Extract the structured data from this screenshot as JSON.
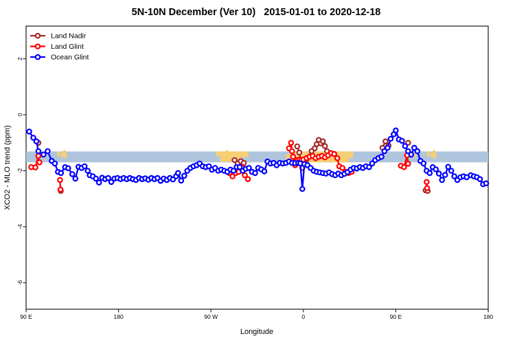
{
  "title": "5N-10N December (Ver 10)   2015-01-01 to 2020-12-18",
  "legend": {
    "items": [
      {
        "label": "Land Nadir",
        "color": "#A52A2A"
      },
      {
        "label": "Land Glint",
        "color": "#FF0000"
      },
      {
        "label": "Ocean Glint",
        "color": "#0000FF"
      }
    ]
  },
  "axes": {
    "x": {
      "label": "Longitude",
      "range_deg": [
        90,
        540
      ],
      "ticks": [
        {
          "deg": 90,
          "label": "90 E"
        },
        {
          "deg": 180,
          "label": "180"
        },
        {
          "deg": 270,
          "label": "90 W"
        },
        {
          "deg": 360,
          "label": "0"
        },
        {
          "deg": 450,
          "label": "90 E"
        },
        {
          "deg": 540,
          "label": "180"
        }
      ]
    },
    "y": {
      "label": "XCO2 - MLO trend (ppm)",
      "ticks": [
        {
          "value": 2,
          "label": "2"
        },
        {
          "value": 0,
          "label": "0"
        },
        {
          "value": -2,
          "label": "-2"
        },
        {
          "value": -4,
          "label": "-4"
        },
        {
          "value": -6,
          "label": "-6"
        }
      ]
    }
  },
  "reference_band": {
    "description": "latitude-strip land/ocean reference band",
    "top_ppm": -1.31,
    "bottom_ppm": -1.7,
    "ocean_color": "#AFC5DD",
    "land_color": "#F7CE74",
    "land_segments": [
      {
        "deg0": 100.8,
        "deg1": 103.4,
        "f0": 0.0,
        "f1": 0.55
      },
      {
        "deg0": 104.6,
        "deg1": 107.6,
        "f0": 0.12,
        "f1": 0.5
      },
      {
        "deg0": 108.2,
        "deg1": 109.8,
        "f0": 0.15,
        "f1": 0.55
      },
      {
        "deg0": 120.2,
        "deg1": 123.0,
        "f0": 0.0,
        "f1": 0.45
      },
      {
        "deg0": 124.0,
        "deg1": 125.5,
        "f0": 0.1,
        "f1": 0.5
      },
      {
        "deg0": 274.8,
        "deg1": 279.0,
        "f0": 0.0,
        "f1": 0.45
      },
      {
        "deg0": 279.0,
        "deg1": 299.0,
        "f0": 0.0,
        "f1": 0.95
      },
      {
        "deg0": 299.0,
        "deg1": 306.5,
        "f0": 0.0,
        "f1": 0.55
      },
      {
        "deg0": 343.0,
        "deg1": 346.5,
        "f0": 0.25,
        "f1": 1.0
      },
      {
        "deg0": 346.5,
        "deg1": 404.5,
        "f0": 0.0,
        "f1": 1.0
      },
      {
        "deg0": 404.5,
        "deg1": 408.5,
        "f0": 0.0,
        "f1": 0.6
      },
      {
        "deg0": 460.8,
        "deg1": 463.4,
        "f0": 0.0,
        "f1": 0.55
      },
      {
        "deg0": 464.6,
        "deg1": 467.6,
        "f0": 0.12,
        "f1": 0.5
      },
      {
        "deg0": 468.2,
        "deg1": 469.8,
        "f0": 0.15,
        "f1": 0.55
      },
      {
        "deg0": 480.2,
        "deg1": 483.0,
        "f0": 0.0,
        "f1": 0.45
      },
      {
        "deg0": 484.0,
        "deg1": 485.5,
        "f0": 0.1,
        "f1": 0.5
      }
    ],
    "island_specks_deg": [
      126.8,
      285.0,
      486.8
    ]
  },
  "chart_data": {
    "type": "line",
    "xlabel": "Longitude",
    "ylabel": "XCO2 - MLO trend (ppm)",
    "x_axis_deg_range": [
      90,
      540
    ],
    "ylim": [
      -6.9,
      3.2
    ],
    "note": "x is longitude in axis degrees: 90=90E, 180=180, 270=90W, 360=0, 450=90E, 540=180; points are [deg, ppm]",
    "series": [
      {
        "name": "Land Nadir",
        "color": "#A52A2A",
        "clusters": [
          [
            [
              102,
              -1.0
            ]
          ],
          [
            [
              123.8,
              -2.72
            ]
          ],
          [
            [
              293,
              -1.62
            ],
            [
              296,
              -1.74
            ],
            [
              299,
              -1.66
            ],
            [
              302,
              -1.72
            ]
          ],
          [
            [
              354,
              -1.13
            ],
            [
              356,
              -1.35
            ],
            [
              359,
              -1.9
            ],
            [
              363,
              -1.6
            ],
            [
              368,
              -1.3
            ],
            [
              371,
              -1.2
            ],
            [
              373,
              -1.05
            ],
            [
              375,
              -0.9
            ],
            [
              377,
              -1.02
            ],
            [
              379,
              -0.95
            ],
            [
              381,
              -1.12
            ],
            [
              383,
              -1.3
            ]
          ],
          [
            [
              437,
              -1.18
            ],
            [
              440,
              -0.95
            ],
            [
              443,
              -1.1
            ]
          ],
          [
            [
              462,
              -1.0
            ]
          ],
          [
            [
              479,
              -2.7
            ],
            [
              481,
              -2.72
            ]
          ]
        ]
      },
      {
        "name": "Land Glint",
        "color": "#FF0000",
        "clusters": [
          [
            [
              95,
              -1.87
            ],
            [
              99,
              -1.88
            ],
            [
              102,
              -1.47
            ],
            [
              103,
              -1.7
            ]
          ],
          [
            [
              123,
              -2.33
            ],
            [
              123.5,
              -2.67
            ]
          ],
          [
            [
              288,
              -2.08
            ],
            [
              291,
              -2.2
            ],
            [
              294,
              -2.08
            ],
            [
              297,
              -2.04
            ],
            [
              300,
              -1.87
            ],
            [
              303,
              -2.16
            ],
            [
              306,
              -2.3
            ]
          ],
          [
            [
              346,
              -1.2
            ],
            [
              348,
              -1.0
            ],
            [
              349,
              -1.3
            ],
            [
              350,
              -1.5
            ],
            [
              352,
              -1.8
            ],
            [
              354,
              -1.62
            ],
            [
              356,
              -1.6
            ],
            [
              358,
              -1.62
            ],
            [
              360,
              -1.6
            ],
            [
              363,
              -1.55
            ],
            [
              366,
              -1.5
            ],
            [
              369,
              -1.47
            ],
            [
              372,
              -1.55
            ],
            [
              375,
              -1.5
            ],
            [
              378,
              -1.47
            ],
            [
              381,
              -1.52
            ],
            [
              384,
              -1.45
            ],
            [
              387,
              -1.37
            ],
            [
              390,
              -1.4
            ],
            [
              393,
              -1.55
            ],
            [
              395,
              -1.84
            ],
            [
              398,
              -1.9
            ],
            [
              401,
              -2.04
            ],
            [
              404,
              -2.08
            ],
            [
              407,
              -2.04
            ]
          ],
          [
            [
              455,
              -1.82
            ],
            [
              458,
              -1.87
            ],
            [
              461,
              -1.45
            ],
            [
              462,
              -1.75
            ]
          ],
          [
            [
              480,
              -2.4
            ],
            [
              480.5,
              -2.62
            ]
          ]
        ]
      },
      {
        "name": "Ocean Glint",
        "color": "#0000FF",
        "clusters": [
          [
            [
              93,
              -0.6
            ],
            [
              97,
              -0.82
            ],
            [
              100,
              -0.95
            ],
            [
              102,
              -1.3
            ],
            [
              107,
              -1.42
            ],
            [
              111,
              -1.3
            ],
            [
              115,
              -1.65
            ],
            [
              118,
              -1.74
            ],
            [
              121,
              -2.04
            ],
            [
              124,
              -2.08
            ],
            [
              128,
              -1.87
            ],
            [
              131,
              -1.91
            ],
            [
              135,
              -2.12
            ],
            [
              138,
              -2.28
            ],
            [
              141,
              -1.86
            ],
            [
              144,
              -1.9
            ],
            [
              147,
              -1.84
            ],
            [
              150,
              -2.0
            ],
            [
              152,
              -2.16
            ],
            [
              155,
              -2.2
            ],
            [
              158,
              -2.28
            ],
            [
              161,
              -2.42
            ],
            [
              164,
              -2.25
            ],
            [
              167,
              -2.3
            ],
            [
              170,
              -2.26
            ],
            [
              173,
              -2.4
            ],
            [
              176,
              -2.28
            ],
            [
              179,
              -2.26
            ],
            [
              182,
              -2.3
            ],
            [
              185,
              -2.26
            ],
            [
              188,
              -2.3
            ],
            [
              191,
              -2.26
            ],
            [
              194,
              -2.3
            ],
            [
              197,
              -2.33
            ],
            [
              200,
              -2.26
            ],
            [
              203,
              -2.3
            ],
            [
              206,
              -2.27
            ],
            [
              209,
              -2.32
            ],
            [
              212,
              -2.26
            ],
            [
              215,
              -2.3
            ],
            [
              218,
              -2.26
            ],
            [
              221,
              -2.36
            ],
            [
              224,
              -2.28
            ],
            [
              227,
              -2.33
            ],
            [
              230,
              -2.26
            ],
            [
              233,
              -2.31
            ],
            [
              236,
              -2.2
            ],
            [
              238,
              -2.08
            ],
            [
              241,
              -2.35
            ],
            [
              244,
              -2.18
            ],
            [
              247,
              -2.0
            ],
            [
              250,
              -1.9
            ],
            [
              253,
              -1.84
            ],
            [
              256,
              -1.8
            ],
            [
              259,
              -1.74
            ],
            [
              262,
              -1.84
            ],
            [
              265,
              -1.87
            ],
            [
              268,
              -1.84
            ],
            [
              271,
              -1.96
            ],
            [
              274,
              -1.9
            ],
            [
              277,
              -2.0
            ],
            [
              280,
              -1.96
            ],
            [
              283,
              -2.0
            ],
            [
              286,
              -2.04
            ],
            [
              289,
              -1.96
            ],
            [
              292,
              -2.0
            ],
            [
              295,
              -1.87
            ],
            [
              298,
              -1.87
            ],
            [
              301,
              -2.0
            ],
            [
              304,
              -1.93
            ],
            [
              307,
              -1.9
            ],
            [
              310,
              -2.04
            ],
            [
              313,
              -2.08
            ],
            [
              316,
              -1.9
            ],
            [
              319,
              -1.95
            ],
            [
              322,
              -2.02
            ],
            [
              325,
              -1.67
            ],
            [
              328,
              -1.74
            ],
            [
              331,
              -1.72
            ],
            [
              334,
              -1.8
            ],
            [
              337,
              -1.72
            ],
            [
              340,
              -1.74
            ],
            [
              343,
              -1.72
            ],
            [
              346,
              -1.67
            ],
            [
              349,
              -1.72
            ],
            [
              352,
              -1.73
            ],
            [
              355,
              -1.72
            ],
            [
              357,
              -1.74
            ],
            [
              359,
              -2.65
            ],
            [
              361,
              -1.76
            ],
            [
              364,
              -1.8
            ],
            [
              367,
              -1.9
            ],
            [
              370,
              -2.0
            ],
            [
              373,
              -2.04
            ],
            [
              376,
              -2.06
            ],
            [
              379,
              -2.08
            ],
            [
              382,
              -2.1
            ],
            [
              385,
              -2.06
            ],
            [
              388,
              -2.12
            ],
            [
              391,
              -2.16
            ],
            [
              394,
              -2.1
            ],
            [
              397,
              -2.16
            ],
            [
              400,
              -2.11
            ],
            [
              403,
              -2.05
            ],
            [
              406,
              -1.96
            ],
            [
              409,
              -1.9
            ],
            [
              412,
              -1.92
            ],
            [
              415,
              -1.87
            ],
            [
              418,
              -1.9
            ],
            [
              421,
              -1.84
            ],
            [
              424,
              -1.87
            ],
            [
              427,
              -1.74
            ],
            [
              430,
              -1.62
            ],
            [
              433,
              -1.55
            ],
            [
              436,
              -1.5
            ],
            [
              439,
              -1.3
            ],
            [
              442,
              -1.18
            ],
            [
              445,
              -0.86
            ],
            [
              448,
              -0.7
            ],
            [
              450,
              -0.56
            ],
            [
              453,
              -0.88
            ],
            [
              456,
              -0.93
            ],
            [
              459,
              -1.12
            ],
            [
              462,
              -1.3
            ],
            [
              465,
              -1.42
            ],
            [
              468,
              -1.18
            ],
            [
              471,
              -1.3
            ],
            [
              474,
              -1.65
            ],
            [
              477,
              -1.74
            ],
            [
              480,
              -2.0
            ],
            [
              483,
              -2.08
            ],
            [
              486,
              -1.87
            ],
            [
              489,
              -1.95
            ],
            [
              492,
              -2.1
            ],
            [
              495,
              -2.33
            ],
            [
              498,
              -2.15
            ],
            [
              501,
              -1.86
            ],
            [
              504,
              -2.0
            ],
            [
              507,
              -2.2
            ],
            [
              510,
              -2.33
            ],
            [
              513,
              -2.23
            ],
            [
              516,
              -2.2
            ],
            [
              519,
              -2.23
            ],
            [
              523,
              -2.16
            ],
            [
              526,
              -2.2
            ],
            [
              529,
              -2.23
            ],
            [
              532,
              -2.3
            ],
            [
              535,
              -2.48
            ],
            [
              538,
              -2.45
            ]
          ]
        ]
      }
    ]
  }
}
